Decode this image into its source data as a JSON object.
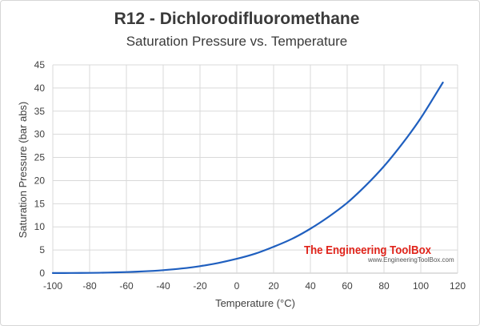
{
  "chart_data": {
    "type": "line",
    "title": "R12 - Dichlorodifluoromethane",
    "subtitle": "Saturation Pressure vs. Temperature",
    "xlabel": "Temperature (°C)",
    "ylabel": "Saturation Pressure (bar abs)",
    "xlim": [
      -100,
      120
    ],
    "ylim": [
      0,
      45
    ],
    "xticks": [
      -100,
      -80,
      -60,
      -40,
      -20,
      0,
      20,
      40,
      60,
      80,
      100,
      120
    ],
    "yticks": [
      0,
      5,
      10,
      15,
      20,
      25,
      30,
      35,
      40,
      45
    ],
    "grid": true,
    "series": [
      {
        "color": "#1f5fbf",
        "x": [
          -100,
          -90,
          -80,
          -70,
          -60,
          -50,
          -40,
          -30,
          -20,
          -10,
          0,
          10,
          20,
          30,
          40,
          50,
          60,
          70,
          80,
          90,
          100,
          112
        ],
        "y": [
          0.01,
          0.03,
          0.06,
          0.12,
          0.23,
          0.39,
          0.64,
          1.0,
          1.5,
          2.2,
          3.1,
          4.2,
          5.7,
          7.4,
          9.6,
          12.2,
          15.2,
          18.9,
          23.1,
          28.0,
          33.5,
          41.2
        ]
      }
    ]
  },
  "watermark": {
    "name": "The Engineering ToolBox",
    "url": "www.EngineeringToolBox.com"
  }
}
